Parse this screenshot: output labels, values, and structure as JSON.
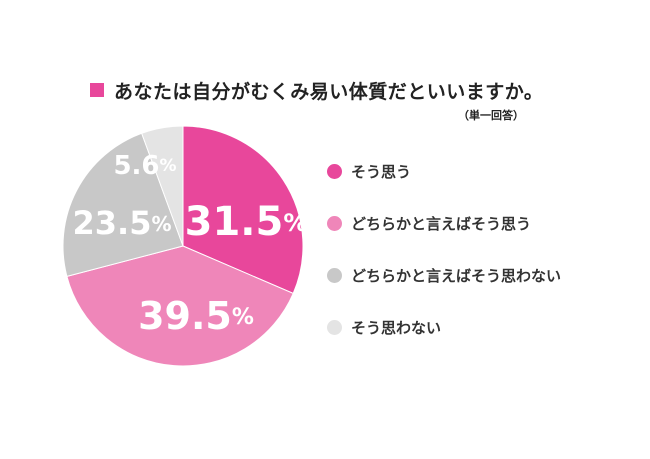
{
  "chart_data": {
    "type": "pie",
    "title": "あなたは自分がむくみ易い体質だといいますか。",
    "subtitle": "（単一回答）",
    "slices": [
      {
        "label": "そう思う",
        "value": 31.5,
        "display": "31.5",
        "color": "#e8479b",
        "label_color": "#ffffff"
      },
      {
        "label": "どちらかと言えばそう思う",
        "value": 39.5,
        "display": "39.5",
        "color": "#ef86b9",
        "label_color": "#ffffff"
      },
      {
        "label": "どちらかと言えばそう思わない",
        "value": 23.5,
        "display": "23.5",
        "color": "#c8c8c8",
        "label_color": "#ffffff"
      },
      {
        "label": "そう思わない",
        "value": 5.6,
        "display": "5.6",
        "color": "#e4e4e4",
        "label_color": "#ffffff"
      }
    ],
    "unit": "%",
    "start": "12 o'clock, clockwise",
    "legend": "right"
  },
  "colors": {
    "accent": "#e8479b"
  }
}
